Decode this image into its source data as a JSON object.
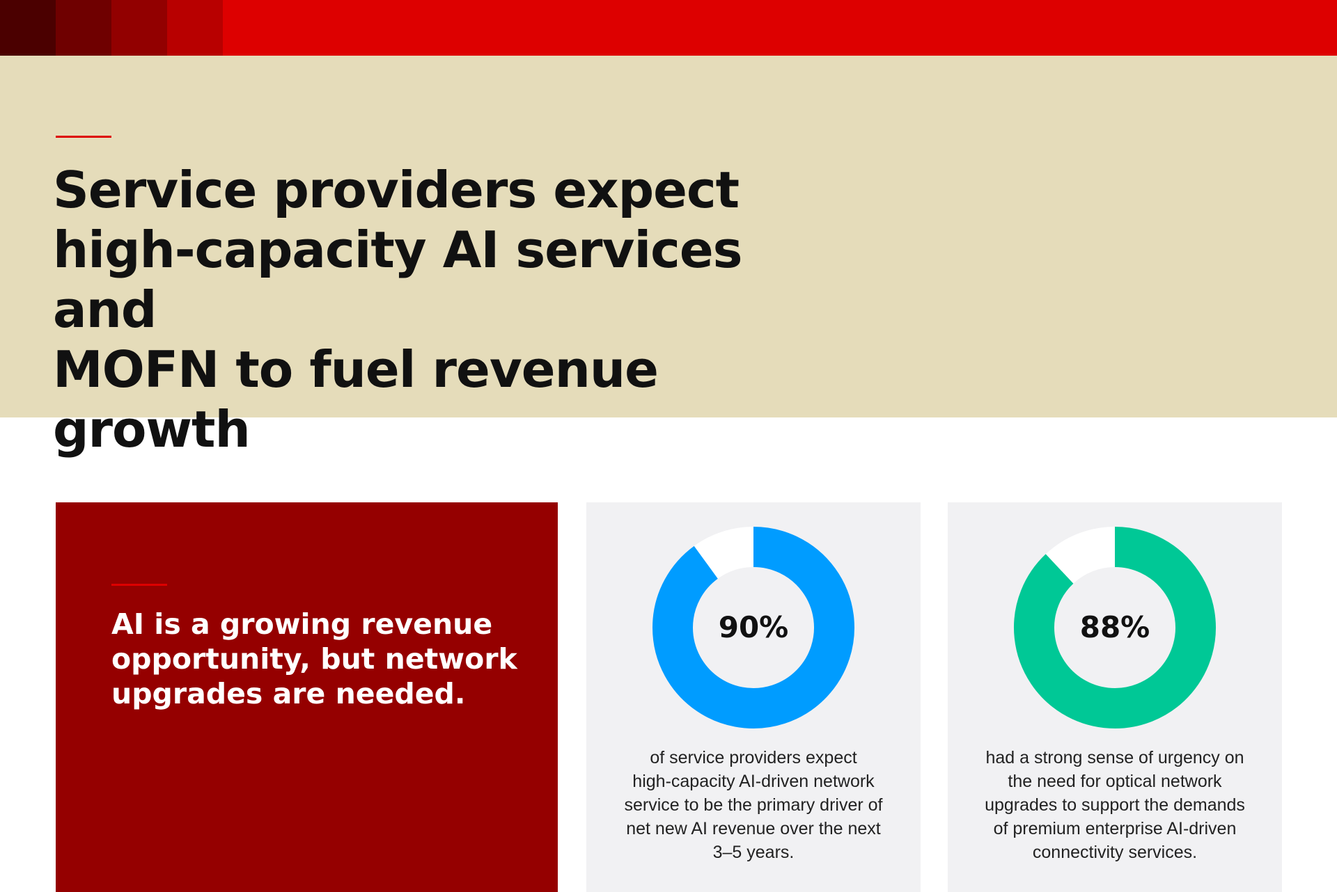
{
  "colors": {
    "top_bar_main": "#DD0000",
    "top_bar_swatches": [
      "#4B0000",
      "#6F0000",
      "#920000",
      "#B80000"
    ],
    "hero_background": "#E5DCBA",
    "accent_line": "#DD0000",
    "red_card_background": "#950000",
    "stat_card_background": "#F1F1F3",
    "donut_remainder": "#FFFFFF",
    "text_dark": "#111111"
  },
  "hero": {
    "title_lines": [
      "Service providers expect",
      "high-capacity AI services and",
      "MOFN to fuel revenue growth"
    ]
  },
  "red_card": {
    "text_lines": [
      "AI is a growing revenue",
      "opportunity, but network",
      "upgrades are needed."
    ]
  },
  "chart_data": [
    {
      "type": "pie",
      "variant": "donut",
      "values": [
        90,
        10
      ],
      "colors": [
        "#009CFF",
        "#FFFFFF"
      ],
      "center_label": "90%",
      "description_lines": [
        "of service providers expect",
        "high-capacity AI-driven network",
        "service to be the primary driver of",
        "net new AI revenue over the next",
        "3–5 years."
      ]
    },
    {
      "type": "pie",
      "variant": "donut",
      "values": [
        88,
        12
      ],
      "colors": [
        "#00C896",
        "#FFFFFF"
      ],
      "center_label": "88%",
      "description_lines": [
        "had a strong sense of urgency on",
        "the need for optical network",
        "upgrades to support the demands",
        "of premium enterprise AI-driven",
        "connectivity services."
      ]
    }
  ]
}
